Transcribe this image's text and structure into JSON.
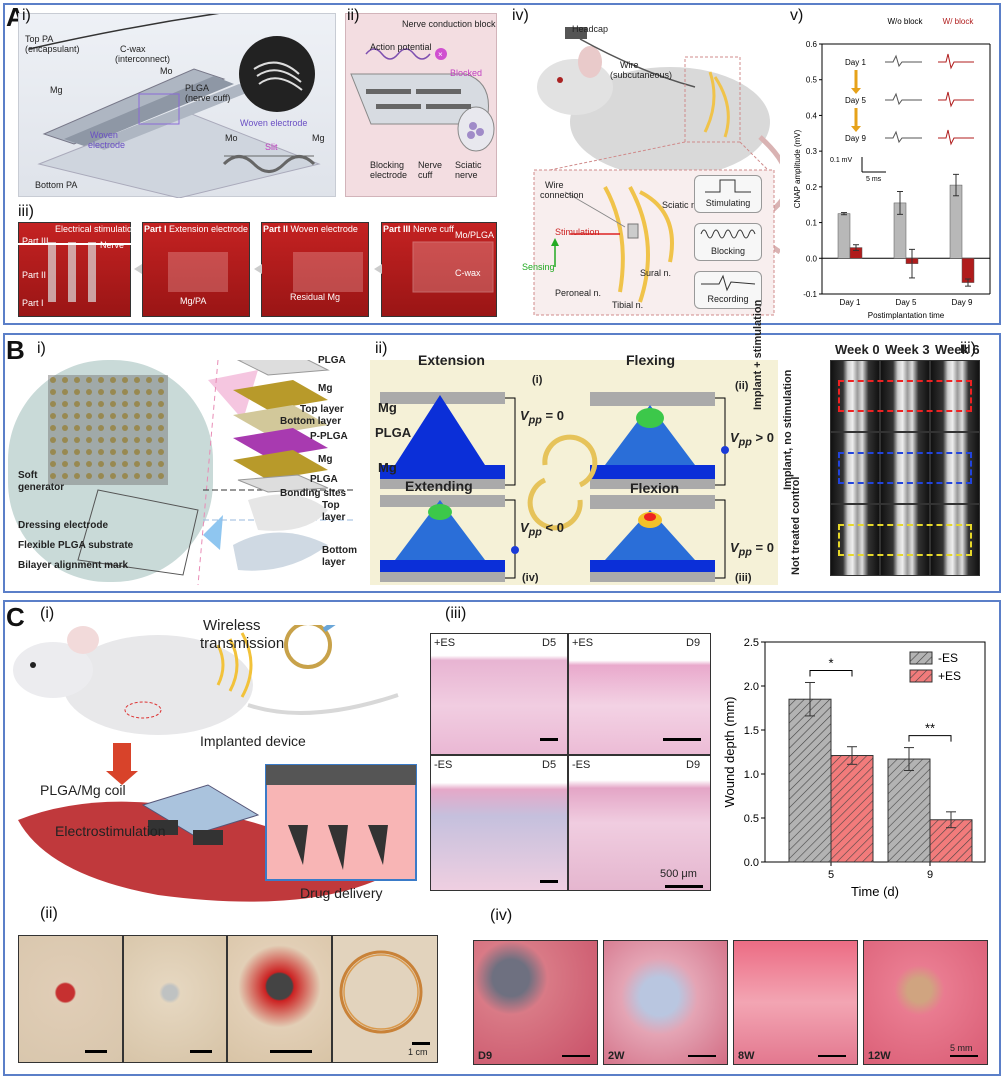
{
  "figure": {
    "panel_labels": {
      "A": "A",
      "B": "B",
      "C": "C"
    },
    "A": {
      "sub_labels": [
        "i)",
        "ii)",
        "iii)",
        "iv)",
        "v)"
      ],
      "i": {
        "labels": [
          "Top PA",
          "(encapsulant)",
          "C-wax",
          "(interconnect)",
          "Mo",
          "PLGA",
          "(nerve cuff)",
          "Mg",
          "Woven electrode",
          "Woven",
          "electrode",
          "Mo",
          "Mg",
          "Slit",
          "Bottom PA"
        ]
      },
      "ii": {
        "title": "Nerve conduction block",
        "labels": [
          "Action potential",
          "Blocked",
          "Blocking",
          "electrode",
          "Nerve",
          "cuff",
          "Sciatic",
          "nerve"
        ]
      },
      "iii": {
        "steps": [
          {
            "bold": "",
            "text": "Electrical stimulation"
          },
          {
            "bold": "Part I",
            "text": " Extension electrode"
          },
          {
            "bold": "Part II",
            "text": " Woven electrode"
          },
          {
            "bold": "Part III",
            "text": " Nerve cuff"
          }
        ],
        "labels": [
          "Part III",
          "Part II",
          "Part I",
          "Nerve",
          "Mg/PA",
          "Residual Mg",
          "Mo/PLGA",
          "C-wax"
        ]
      },
      "iv": {
        "labels": [
          "Headcap",
          "Wire",
          "(subcutaneous)",
          "Wire",
          "connection",
          "Sciatic n.",
          "Stimulation",
          "Sensing",
          "Sural n.",
          "Peroneal n.",
          "Tibial n."
        ],
        "modes": [
          "Stimulating",
          "Blocking",
          "Recording"
        ]
      }
    },
    "B": {
      "sub_labels": [
        "i)",
        "ii)",
        "iii)"
      ],
      "i": {
        "labels": [
          "PLGA",
          "Mg",
          "Top layer",
          "Bottom layer",
          "P-PLGA",
          "Mg",
          "PLGA",
          "Bonding sites",
          "Soft",
          "generator",
          "Dressing electrode",
          "Flexible PLGA substrate",
          "Bilayer alignment mark",
          "Top",
          "layer",
          "Bottom",
          "layer"
        ]
      },
      "ii": {
        "states": [
          "Extension",
          "Flexing",
          "Extending",
          "Flexion"
        ],
        "roman": [
          "(i)",
          "(ii)",
          "(iv)",
          "(iii)"
        ],
        "vpp": [
          "= 0",
          "> 0",
          "< 0",
          "= 0"
        ],
        "labels": [
          "Mg",
          "PLGA",
          "Mg"
        ],
        "vpp_symbol": "V",
        "vpp_sub": "pp"
      },
      "iii": {
        "weeks": [
          "Week 0",
          "Week 3",
          "Week 6"
        ],
        "rows": [
          "Implant + stimulation",
          "Implant, no stimulation",
          "Not treated control"
        ]
      }
    },
    "C": {
      "sub_labels": [
        "(i)",
        "(ii)",
        "(iii)",
        "(iv)"
      ],
      "i": {
        "labels": [
          "Wireless",
          "transmission",
          "Implanted device",
          "PLGA/Mg coil",
          "Electrostimulation",
          "Drug delivery"
        ]
      },
      "ii": {
        "scale": "1 cm"
      },
      "iii": {
        "panels": [
          {
            "cond": "+ES",
            "day": "D5"
          },
          {
            "cond": "+ES",
            "day": "D9"
          },
          {
            "cond": "-ES",
            "day": "D5"
          },
          {
            "cond": "-ES",
            "day": "D9"
          }
        ],
        "scale": "500 μm"
      },
      "iv": {
        "times": [
          "D9",
          "2W",
          "8W",
          "12W"
        ],
        "scale": "5 mm"
      }
    }
  },
  "chart_data": [
    {
      "type": "bar",
      "panel": "A v",
      "categories": [
        "Day 1",
        "Day 5",
        "Day 9"
      ],
      "series": [
        {
          "name": "W/o block",
          "color": "#b8b8b8",
          "values": [
            0.125,
            0.155,
            0.205
          ],
          "err": [
            0.003,
            0.032,
            0.03
          ]
        },
        {
          "name": "W/ block",
          "color": "#b01c1c",
          "values": [
            0.03,
            -0.015,
            -0.068
          ],
          "err": [
            0.008,
            0.04,
            0.01
          ]
        }
      ],
      "ylabel": "CNAP amplitude (mV)",
      "xlabel": "Postimplantation time",
      "ylim": [
        -0.1,
        0.6
      ],
      "yticks": [
        "-0.1",
        "0.0",
        "0.1",
        "0.2",
        "0.3",
        "0.4",
        "0.5",
        "0.6"
      ],
      "legend": [
        "W/o block",
        "W/ block"
      ],
      "trace_rows": [
        "Day 1",
        "Day 5",
        "Day 9"
      ],
      "scale_bar": [
        "0.1 mV",
        "5 ms"
      ]
    },
    {
      "type": "bar",
      "panel": "C iii",
      "categories": [
        "5",
        "9"
      ],
      "series": [
        {
          "name": "-ES",
          "color": "#b3b3b3",
          "values": [
            1.85,
            1.17
          ],
          "err": [
            0.19,
            0.13
          ]
        },
        {
          "name": "+ES",
          "color": "#f27b7b",
          "values": [
            1.21,
            0.48
          ],
          "err": [
            0.1,
            0.09
          ]
        }
      ],
      "ylabel": "Wound depth (mm)",
      "xlabel": "Time (d)",
      "ylim": [
        0.0,
        2.5
      ],
      "yticks": [
        "0.0",
        "0.5",
        "1.0",
        "1.5",
        "2.0",
        "2.5"
      ],
      "significance": [
        "*",
        "**"
      ],
      "legend_position": "top-right"
    }
  ]
}
